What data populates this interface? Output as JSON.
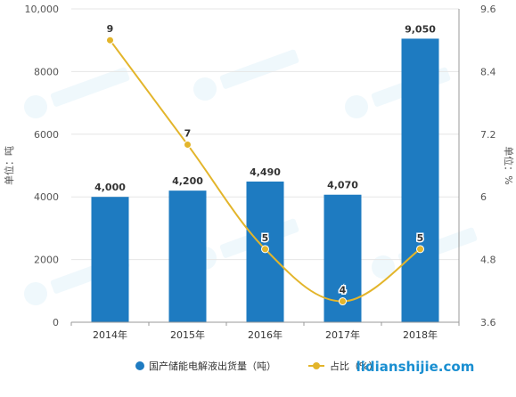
{
  "colors": {
    "bar": "#1e7bc1",
    "line": "#e3b52b",
    "grid": "#e6e6e6",
    "axis": "#999999",
    "watermark": "#1a8fd1"
  },
  "watermark_text": "lidianshijie.com",
  "chart_data": {
    "type": "bar",
    "categories": [
      "2014年",
      "2015年",
      "2016年",
      "2017年",
      "2018年"
    ],
    "series": [
      {
        "name": "国产储能电解液出货量（吨）",
        "type": "bar",
        "axis": "left",
        "values": [
          4000,
          4200,
          4490,
          4070,
          9050
        ],
        "labels": [
          "4,000",
          "4,200",
          "4,490",
          "4,070",
          "9,050"
        ]
      },
      {
        "name": "占比（%）",
        "type": "line",
        "axis": "right",
        "values": [
          9,
          7,
          5,
          4,
          5
        ],
        "labels": [
          "9",
          "7",
          "5",
          "4",
          "5"
        ]
      }
    ],
    "y_left": {
      "label": "单位：吨",
      "min": 0,
      "max": 10000,
      "ticks": [
        0,
        2000,
        4000,
        6000,
        8000,
        10000
      ],
      "tick_labels": [
        "0",
        "2000",
        "4000",
        "6000",
        "8000",
        "10,000"
      ]
    },
    "y_right": {
      "label": "单位：%",
      "min": 3.6,
      "max": 9.6,
      "ticks": [
        3.6,
        4.8,
        6,
        7.2,
        8.4,
        9.6
      ],
      "tick_labels": [
        "3.6",
        "4.8",
        "6",
        "7.2",
        "8.4",
        "9.6"
      ]
    },
    "grid": true,
    "legend_position": "bottom",
    "title": "",
    "xlabel": ""
  }
}
